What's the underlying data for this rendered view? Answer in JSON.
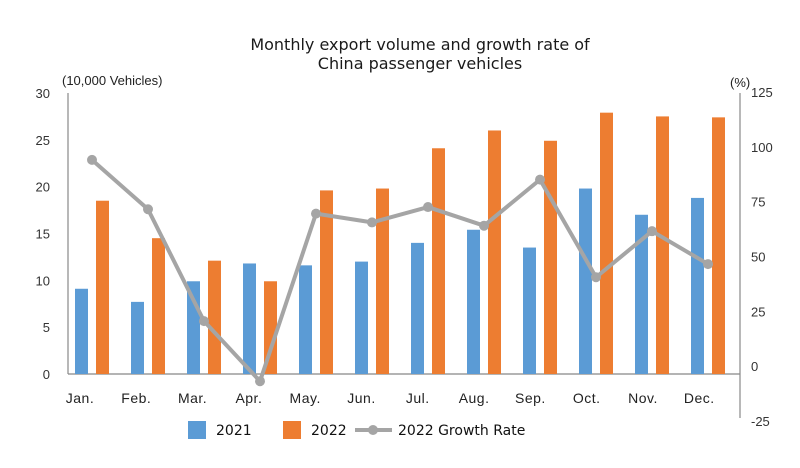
{
  "chart_data": {
    "type": "bar",
    "title_lines": [
      "Monthly export volume and growth rate of",
      "China passenger vehicles"
    ],
    "ylabel_left": "(10,000 Vehicles)",
    "ylabel_right": "(%)",
    "ylim_left": [
      0,
      30
    ],
    "yticks_left": [
      0,
      5,
      10,
      15,
      20,
      25,
      30
    ],
    "ylim_right": [
      -25,
      125
    ],
    "yticks_right": [
      -25,
      0,
      25,
      50,
      75,
      100,
      125
    ],
    "negative_tick_color": "#e03030",
    "categories": [
      "Jan.",
      "Feb.",
      "Mar.",
      "Apr.",
      "May.",
      "Jun.",
      "Jul.",
      "Aug.",
      "Sep.",
      "Oct.",
      "Nov.",
      "Dec."
    ],
    "series": [
      {
        "name": "2021",
        "type": "bar",
        "axis": "left",
        "color": "#5b9bd5",
        "values": [
          9.1,
          7.7,
          9.9,
          11.8,
          11.6,
          12.0,
          14.0,
          15.4,
          13.5,
          19.8,
          17.0,
          18.8
        ]
      },
      {
        "name": "2022",
        "type": "bar",
        "axis": "left",
        "color": "#ed7d31",
        "values": [
          18.5,
          14.5,
          12.1,
          9.9,
          19.6,
          19.8,
          24.1,
          26.0,
          24.9,
          27.9,
          27.5,
          27.4
        ]
      },
      {
        "name": "2022 Growth Rate",
        "type": "line",
        "axis": "right",
        "color": "#a5a5a5",
        "values": [
          94.5,
          72,
          21,
          -6.4,
          70,
          66,
          73,
          64.5,
          85.5,
          41,
          62,
          47
        ]
      }
    ],
    "grid": false,
    "legend_position": "bottom"
  }
}
